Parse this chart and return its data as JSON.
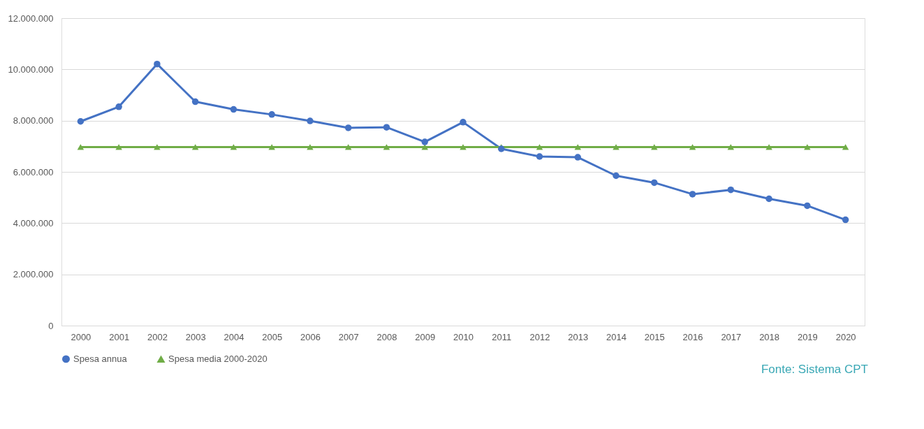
{
  "chart_data": {
    "type": "line",
    "categories": [
      "2000",
      "2001",
      "2002",
      "2003",
      "2004",
      "2005",
      "2006",
      "2007",
      "2008",
      "2009",
      "2010",
      "2011",
      "2012",
      "2013",
      "2014",
      "2015",
      "2016",
      "2017",
      "2018",
      "2019",
      "2020"
    ],
    "series": [
      {
        "name": "Spesa annua",
        "color": "#4472c4",
        "marker": "circle",
        "values": [
          7970000,
          8540000,
          10210000,
          8740000,
          8440000,
          8240000,
          7990000,
          7720000,
          7740000,
          7170000,
          7940000,
          6900000,
          6600000,
          6570000,
          5850000,
          5580000,
          5130000,
          5300000,
          4950000,
          4680000,
          4130000
        ]
      },
      {
        "name": "Spesa media 2000-2020",
        "color": "#70ad47",
        "marker": "triangle",
        "values": [
          6970000,
          6970000,
          6970000,
          6970000,
          6970000,
          6970000,
          6970000,
          6970000,
          6970000,
          6970000,
          6970000,
          6970000,
          6970000,
          6970000,
          6970000,
          6970000,
          6970000,
          6970000,
          6970000,
          6970000,
          6970000
        ]
      }
    ],
    "ylim": [
      0,
      12000000
    ],
    "yticks": [
      {
        "value": 0,
        "label": "0"
      },
      {
        "value": 2000000,
        "label": "2.000.000"
      },
      {
        "value": 4000000,
        "label": "4.000.000"
      },
      {
        "value": 6000000,
        "label": "6.000.000"
      },
      {
        "value": 8000000,
        "label": "8.000.000"
      },
      {
        "value": 10000000,
        "label": "10.000.000"
      },
      {
        "value": 12000000,
        "label": "12.000.000"
      }
    ],
    "grid": "y",
    "legend": "bottom",
    "line_style": "solid",
    "annotations": [
      "Fonte: Sistema CPT"
    ]
  }
}
